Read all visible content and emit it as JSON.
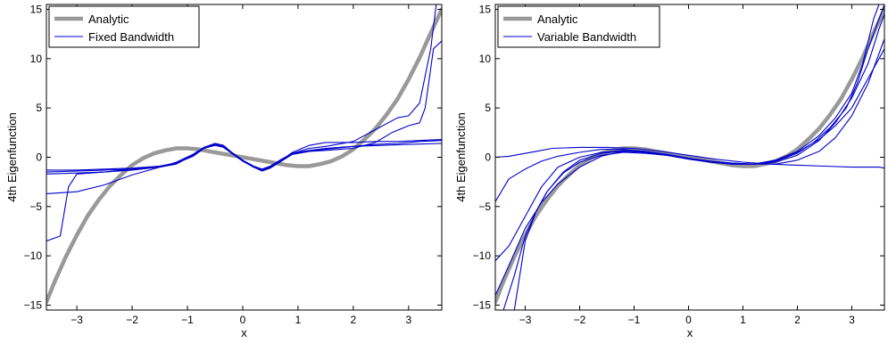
{
  "colors": {
    "analytic": "#999999",
    "numeric": "#0000cc"
  },
  "chart_data": [
    {
      "type": "line",
      "xlabel": "x",
      "ylabel": "4th Eigenfunction",
      "xlim": [
        -3.55,
        3.6
      ],
      "ylim": [
        -15.5,
        15.5
      ],
      "xticks": [
        -3,
        -2,
        -1,
        0,
        1,
        2,
        3
      ],
      "yticks": [
        -15,
        -10,
        -5,
        0,
        5,
        10,
        15
      ],
      "legend": {
        "position": "top-left",
        "entries": [
          "Analytic",
          "Fixed Bandwidth"
        ]
      },
      "series": [
        {
          "name": "Analytic",
          "style": "analytic",
          "x": [
            -3.55,
            -3.4,
            -3.2,
            -3.0,
            -2.8,
            -2.6,
            -2.4,
            -2.2,
            -2.0,
            -1.8,
            -1.6,
            -1.4,
            -1.2,
            -1.0,
            -0.8,
            -0.6,
            -0.4,
            -0.2,
            0,
            0.2,
            0.4,
            0.6,
            0.8,
            1.0,
            1.2,
            1.4,
            1.6,
            1.8,
            2.0,
            2.2,
            2.4,
            2.6,
            2.8,
            3.0,
            3.2,
            3.4,
            3.6
          ],
          "y": [
            -14.7,
            -12.6,
            -10.1,
            -7.9,
            -5.9,
            -4.3,
            -2.9,
            -1.8,
            -0.8,
            -0.1,
            0.4,
            0.7,
            0.9,
            0.9,
            0.8,
            0.6,
            0.4,
            0.2,
            0.0,
            -0.2,
            -0.4,
            -0.6,
            -0.8,
            -0.9,
            -0.9,
            -0.7,
            -0.4,
            0.1,
            0.8,
            1.8,
            2.9,
            4.3,
            5.9,
            7.9,
            10.1,
            12.6,
            15.0
          ]
        },
        {
          "style": "numeric",
          "x": [
            -3.55,
            -3.3,
            -3.15,
            -3.0,
            -2.5,
            -2.0,
            -1.5,
            -1.2,
            -0.9,
            -0.7,
            -0.5,
            -0.35,
            -0.2,
            0,
            0.2,
            0.35,
            0.5,
            0.7,
            0.9,
            1.2,
            1.5,
            2.0,
            2.4,
            2.8,
            3.0,
            3.2,
            3.6
          ],
          "y": [
            -8.5,
            -8.0,
            -3.0,
            -1.7,
            -1.5,
            -1.2,
            -0.9,
            -0.6,
            0.2,
            1.0,
            1.4,
            1.2,
            0.5,
            -0.3,
            -1.0,
            -1.3,
            -0.9,
            -0.2,
            0.4,
            0.7,
            0.9,
            1.1,
            1.3,
            1.4,
            1.5,
            1.6,
            1.7
          ]
        },
        {
          "style": "numeric",
          "x": [
            -3.55,
            -3.0,
            -2.5,
            -2.0,
            -1.5,
            -1.2,
            -0.9,
            -0.7,
            -0.5,
            -0.35,
            -0.2,
            0,
            0.2,
            0.35,
            0.5,
            0.7,
            0.9,
            1.2,
            1.5,
            2.0,
            2.4,
            2.8,
            3.2,
            3.6
          ],
          "y": [
            -3.7,
            -3.5,
            -2.8,
            -1.8,
            -1.0,
            -0.5,
            0.3,
            1.0,
            1.3,
            1.1,
            0.4,
            -0.4,
            -1.0,
            -1.3,
            -1.0,
            -0.3,
            0.5,
            1.2,
            1.5,
            1.5,
            1.6,
            1.6,
            1.7,
            1.8
          ]
        },
        {
          "style": "numeric",
          "x": [
            -3.55,
            -3.0,
            -2.5,
            -2.0,
            -1.5,
            -1.2,
            -0.9,
            -0.7,
            -0.5,
            -0.35,
            -0.2,
            0,
            0.2,
            0.35,
            0.5,
            0.7,
            0.9,
            1.2,
            1.5,
            2.0,
            2.4,
            2.7,
            3.0,
            3.2,
            3.3,
            3.45,
            3.6
          ],
          "y": [
            -1.5,
            -1.4,
            -1.3,
            -1.2,
            -0.9,
            -0.6,
            0.1,
            0.9,
            1.3,
            1.1,
            0.4,
            -0.4,
            -1.0,
            -1.4,
            -1.1,
            -0.4,
            0.3,
            0.6,
            0.7,
            0.9,
            1.5,
            2.5,
            3.2,
            3.5,
            5.0,
            11.0,
            11.8
          ]
        },
        {
          "style": "numeric",
          "x": [
            -3.55,
            -3.0,
            -2.5,
            -2.0,
            -1.5,
            -1.2,
            -0.9,
            -0.7,
            -0.5,
            -0.35,
            -0.2,
            0,
            0.2,
            0.35,
            0.5,
            0.7,
            0.9,
            1.2,
            1.5,
            2.0,
            2.4,
            2.8,
            3.0,
            3.2,
            3.4,
            3.5,
            3.6
          ],
          "y": [
            -1.7,
            -1.6,
            -1.5,
            -1.3,
            -1.0,
            -0.7,
            0.2,
            1.0,
            1.4,
            1.2,
            0.5,
            -0.3,
            -1.0,
            -1.3,
            -1.0,
            -0.3,
            0.4,
            0.9,
            1.1,
            1.6,
            2.8,
            4.0,
            4.2,
            5.5,
            11.0,
            15.5,
            15.5
          ]
        },
        {
          "style": "numeric",
          "x": [
            -3.55,
            -3.0,
            -2.5,
            -2.0,
            -1.5,
            -1.2,
            -0.9,
            -0.7,
            -0.5,
            -0.35,
            -0.2,
            0,
            0.2,
            0.35,
            0.5,
            0.7,
            0.9,
            1.2,
            1.5,
            2.0,
            2.5,
            3.0,
            3.6
          ],
          "y": [
            -1.3,
            -1.3,
            -1.2,
            -1.1,
            -0.9,
            -0.6,
            0.1,
            0.9,
            1.2,
            1.0,
            0.4,
            -0.3,
            -0.9,
            -1.2,
            -0.9,
            -0.3,
            0.3,
            0.6,
            0.8,
            1.1,
            1.2,
            1.3,
            1.4
          ]
        }
      ]
    },
    {
      "type": "line",
      "xlabel": "x",
      "ylabel": "4th Eigenfunction",
      "xlim": [
        -3.55,
        3.6
      ],
      "ylim": [
        -15.5,
        15.5
      ],
      "xticks": [
        -3,
        -2,
        -1,
        0,
        1,
        2,
        3
      ],
      "yticks": [
        -15,
        -10,
        -5,
        0,
        5,
        10,
        15
      ],
      "legend": {
        "position": "top-left",
        "entries": [
          "Analytic",
          "Variable Bandwidth"
        ]
      },
      "series": [
        {
          "name": "Analytic",
          "style": "analytic",
          "x": [
            -3.55,
            -3.4,
            -3.2,
            -3.0,
            -2.8,
            -2.6,
            -2.4,
            -2.2,
            -2.0,
            -1.8,
            -1.6,
            -1.4,
            -1.2,
            -1.0,
            -0.8,
            -0.6,
            -0.4,
            -0.2,
            0,
            0.2,
            0.4,
            0.6,
            0.8,
            1.0,
            1.2,
            1.4,
            1.6,
            1.8,
            2.0,
            2.2,
            2.4,
            2.6,
            2.8,
            3.0,
            3.2,
            3.4,
            3.6
          ],
          "y": [
            -14.7,
            -12.6,
            -10.1,
            -7.9,
            -5.9,
            -4.3,
            -2.9,
            -1.8,
            -0.8,
            -0.1,
            0.4,
            0.7,
            0.9,
            0.9,
            0.8,
            0.6,
            0.4,
            0.2,
            0.0,
            -0.2,
            -0.4,
            -0.6,
            -0.8,
            -0.9,
            -0.9,
            -0.7,
            -0.4,
            0.1,
            0.8,
            1.8,
            2.9,
            4.3,
            5.9,
            7.9,
            10.1,
            12.6,
            15.0
          ]
        },
        {
          "style": "numeric",
          "x": [
            -3.55,
            -3.3,
            -3.1,
            -2.8,
            -2.5,
            -2.0,
            -1.5,
            -1.0,
            -0.5,
            0,
            0.5,
            1.0,
            1.5,
            2.0,
            2.5,
            3.0,
            3.5,
            3.6
          ],
          "y": [
            0.0,
            0.1,
            0.3,
            0.6,
            0.9,
            1.0,
            1.0,
            0.9,
            0.6,
            0.2,
            -0.2,
            -0.5,
            -0.7,
            -0.8,
            -0.9,
            -1.0,
            -1.0,
            -1.1
          ]
        },
        {
          "style": "numeric",
          "x": [
            -3.55,
            -3.3,
            -3.0,
            -2.7,
            -2.4,
            -2.0,
            -1.6,
            -1.2,
            -0.8,
            -0.4,
            0,
            0.4,
            0.8,
            1.2,
            1.6,
            2.0,
            2.4,
            2.7,
            3.0,
            3.3,
            3.6
          ],
          "y": [
            -4.5,
            -2.2,
            -1.2,
            -0.4,
            0.1,
            0.5,
            0.8,
            0.8,
            0.6,
            0.3,
            -0.1,
            -0.4,
            -0.6,
            -0.7,
            -0.7,
            -0.3,
            0.6,
            2.0,
            4.2,
            7.5,
            12.0
          ]
        },
        {
          "style": "numeric",
          "x": [
            -3.55,
            -3.3,
            -3.0,
            -2.7,
            -2.4,
            -2.0,
            -1.6,
            -1.2,
            -0.8,
            -0.4,
            0,
            0.4,
            0.8,
            1.2,
            1.6,
            2.0,
            2.4,
            2.7,
            3.0,
            3.3,
            3.5,
            3.6
          ],
          "y": [
            -10.5,
            -9.0,
            -6.0,
            -3.0,
            -1.0,
            0.0,
            0.5,
            0.7,
            0.5,
            0.2,
            -0.1,
            -0.4,
            -0.6,
            -0.7,
            -0.5,
            0.2,
            1.7,
            3.5,
            6.0,
            9.5,
            13.0,
            14.5
          ]
        },
        {
          "style": "numeric",
          "x": [
            -3.55,
            -3.4,
            -3.2,
            -3.0,
            -2.8,
            -2.6,
            -2.3,
            -2.0,
            -1.6,
            -1.2,
            -0.8,
            -0.4,
            0,
            0.4,
            0.8,
            1.2,
            1.6,
            2.0,
            2.3,
            2.6,
            2.9,
            3.1,
            3.3,
            3.5,
            3.6
          ],
          "y": [
            -15.5,
            -15.5,
            -12.0,
            -8.0,
            -5.5,
            -3.5,
            -1.6,
            -0.5,
            0.2,
            0.5,
            0.4,
            0.2,
            -0.2,
            -0.5,
            -0.7,
            -0.7,
            -0.4,
            0.4,
            1.5,
            3.0,
            5.0,
            7.5,
            11.0,
            14.0,
            15.5
          ]
        },
        {
          "style": "numeric",
          "x": [
            -3.2,
            -3.1,
            -3.0,
            -2.8,
            -2.6,
            -2.3,
            -2.0,
            -1.6,
            -1.2,
            -0.8,
            -0.4,
            0,
            0.4,
            0.8,
            1.2,
            1.6,
            2.0,
            2.4,
            2.7,
            3.0,
            3.2,
            3.4,
            3.5,
            3.6
          ],
          "y": [
            -15.5,
            -12.0,
            -8.5,
            -5.5,
            -3.5,
            -1.5,
            -0.3,
            0.4,
            0.6,
            0.5,
            0.2,
            -0.1,
            -0.5,
            -0.7,
            -0.7,
            -0.3,
            0.6,
            2.2,
            4.0,
            6.5,
            9.5,
            14.0,
            15.5,
            15.5
          ]
        },
        {
          "style": "numeric",
          "x": [
            -3.55,
            -3.3,
            -3.0,
            -2.7,
            -2.4,
            -2.0,
            -1.6,
            -1.2,
            -0.8,
            -0.4,
            0,
            0.4,
            0.8,
            1.2,
            1.6,
            2.0,
            2.4,
            2.7,
            3.0,
            3.3,
            3.6
          ],
          "y": [
            -14.0,
            -11.0,
            -7.2,
            -4.6,
            -2.7,
            -1.0,
            0.1,
            0.6,
            0.6,
            0.3,
            -0.1,
            -0.5,
            -0.7,
            -0.7,
            -0.3,
            0.5,
            1.8,
            3.2,
            5.0,
            8.0,
            11.0
          ]
        }
      ]
    }
  ]
}
